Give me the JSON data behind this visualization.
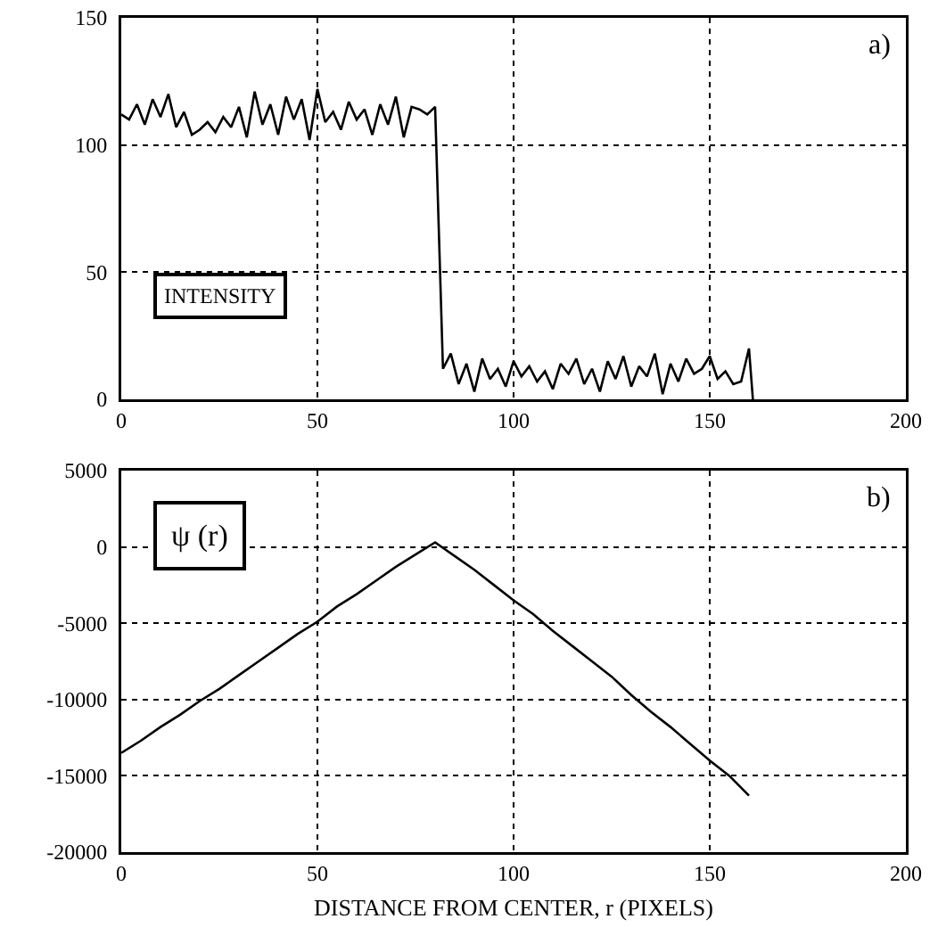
{
  "chart_data": [
    {
      "type": "line",
      "x": [
        0,
        2,
        4,
        6,
        8,
        10,
        12,
        14,
        16,
        18,
        20,
        22,
        24,
        26,
        28,
        30,
        32,
        34,
        36,
        38,
        40,
        42,
        44,
        46,
        48,
        50,
        52,
        54,
        56,
        58,
        60,
        62,
        64,
        66,
        68,
        70,
        72,
        74,
        76,
        78,
        80,
        82,
        84,
        86,
        88,
        90,
        92,
        94,
        96,
        98,
        100,
        102,
        104,
        106,
        108,
        110,
        112,
        114,
        116,
        118,
        120,
        122,
        124,
        126,
        128,
        130,
        132,
        134,
        136,
        138,
        140,
        142,
        144,
        146,
        148,
        150,
        152,
        154,
        156,
        158,
        160,
        161
      ],
      "series": [
        {
          "color": "#000000",
          "values": [
            112,
            110,
            116,
            108,
            118,
            111,
            120,
            107,
            113,
            104,
            106,
            109,
            105,
            111,
            107,
            115,
            103,
            121,
            108,
            116,
            104,
            119,
            110,
            118,
            102,
            122,
            109,
            113,
            106,
            117,
            110,
            114,
            104,
            116,
            108,
            119,
            103,
            115,
            114,
            112,
            115,
            12,
            18,
            6,
            14,
            3,
            16,
            8,
            12,
            5,
            15,
            9,
            13,
            7,
            11,
            4,
            14,
            10,
            16,
            6,
            12,
            3,
            15,
            8,
            17,
            5,
            13,
            9,
            18,
            2,
            14,
            7,
            16,
            10,
            12,
            17,
            8,
            11,
            6,
            7,
            20,
            0
          ]
        }
      ],
      "xlim": [
        0,
        200
      ],
      "ylim": [
        0,
        150
      ],
      "xticks": [
        0,
        50,
        100,
        150,
        200
      ],
      "yticks": [
        0,
        50,
        100,
        150
      ],
      "grid": true,
      "annotations": [
        "a)",
        "INTENSITY"
      ]
    },
    {
      "type": "line",
      "x": [
        0,
        5,
        10,
        15,
        20,
        25,
        30,
        35,
        40,
        45,
        50,
        55,
        60,
        65,
        70,
        75,
        80,
        85,
        90,
        95,
        100,
        105,
        110,
        115,
        120,
        125,
        130,
        135,
        140,
        145,
        150,
        155,
        160
      ],
      "series": [
        {
          "color": "#000000",
          "values": [
            -13500,
            -12700,
            -11800,
            -11000,
            -10100,
            -9300,
            -8400,
            -7500,
            -6600,
            -5700,
            -4900,
            -3900,
            -3100,
            -2200,
            -1300,
            -500,
            300,
            -600,
            -1500,
            -2500,
            -3500,
            -4400,
            -5500,
            -6500,
            -7500,
            -8500,
            -9700,
            -10800,
            -11800,
            -12900,
            -14000,
            -15000,
            -16300
          ]
        }
      ],
      "xlim": [
        0,
        200
      ],
      "ylim": [
        -20000,
        5000
      ],
      "xticks": [
        0,
        50,
        100,
        150,
        200
      ],
      "yticks": [
        -20000,
        -15000,
        -10000,
        -5000,
        0,
        5000
      ],
      "grid": true,
      "xlabel": "DISTANCE FROM CENTER, r (PIXELS)",
      "annotations": [
        "b)",
        "ψ (r)"
      ]
    }
  ]
}
